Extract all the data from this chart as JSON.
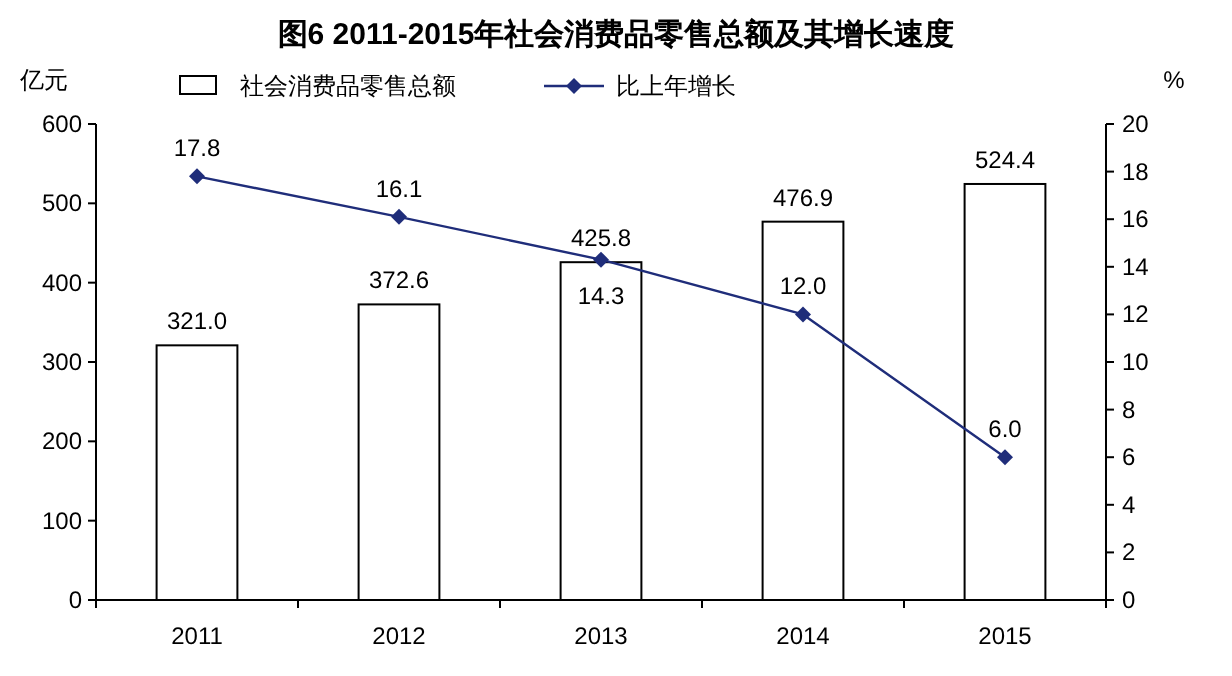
{
  "chart_data": {
    "type": "bar",
    "title": "图6  2011-2015年社会消费品零售总额及其增长速度",
    "ylabel": "亿元",
    "y2label": "%",
    "categories": [
      "2011",
      "2012",
      "2013",
      "2014",
      "2015"
    ],
    "series": [
      {
        "name": "社会消费品零售总额",
        "color": "#ffffff",
        "values": [
          321,
          372.6,
          425.8,
          476.9,
          524.4
        ],
        "value_labels": [
          "321.0",
          "372.6",
          "425.8",
          "476.9",
          "524.4"
        ]
      },
      {
        "name": "比上年增长",
        "type": "line",
        "axis": "y2",
        "color": "#1f2d7a",
        "marker": "diamond",
        "values": [
          17.8,
          16.1,
          14.3,
          12,
          6
        ],
        "value_labels": [
          "17.8",
          "16.1",
          "14.3",
          "12.0",
          "6.0"
        ]
      }
    ],
    "ylim": [
      0,
      600
    ],
    "yticks": [
      0,
      100,
      200,
      300,
      400,
      500,
      600
    ],
    "y2lim": [
      0,
      20
    ],
    "y2ticks": [
      0,
      2,
      4,
      6,
      8,
      10,
      12,
      14,
      16,
      18,
      20
    ],
    "legend": "top",
    "grid": false
  }
}
